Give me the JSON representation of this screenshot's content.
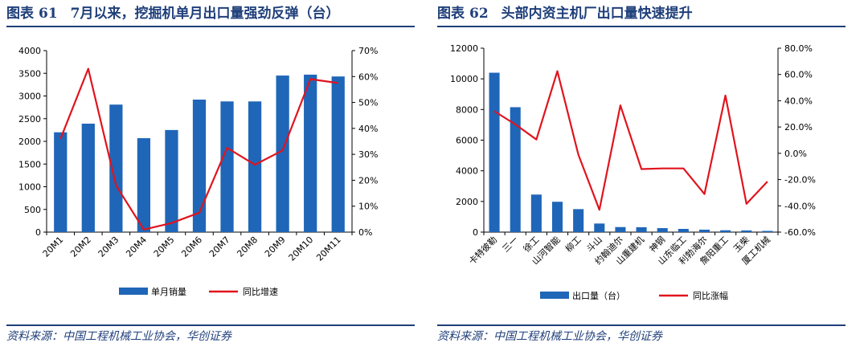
{
  "left": {
    "figure_label": "图表",
    "figure_number": "61",
    "title": "7月以来，挖掘机单月出口量强劲反弹（台）",
    "source": "资料来源：中国工程机械工业协会，华创证券"
  },
  "right": {
    "figure_label": "图表",
    "figure_number": "62",
    "title": "头部内资主机厂出口量快速提升",
    "source": "资料来源：中国工程机械工业协会，华创证券"
  },
  "colors": {
    "bar": "#1f66b8",
    "line": "#e0141e",
    "title": "#1f3f7a"
  },
  "chart_data": [
    {
      "type": "bar",
      "categories": [
        "20M1",
        "20M2",
        "20M3",
        "20M4",
        "20M5",
        "20M6",
        "20M7",
        "20M8",
        "20M9",
        "20M10",
        "20M11"
      ],
      "series": [
        {
          "name": "单月销量",
          "type": "bar",
          "axis": "left",
          "values": [
            2200,
            2390,
            2810,
            2070,
            2250,
            2920,
            2880,
            2880,
            3450,
            3470,
            3430
          ]
        },
        {
          "name": "同比增速",
          "type": "line",
          "axis": "right",
          "values": [
            36,
            63,
            18,
            1,
            3.5,
            7.5,
            32.5,
            26,
            31.5,
            59,
            57.5
          ]
        }
      ],
      "ylim": [
        0,
        4000
      ],
      "yticks": [
        0,
        500,
        1000,
        1500,
        2000,
        2500,
        3000,
        3500,
        4000
      ],
      "y2lim": [
        0,
        70
      ],
      "y2ticks": [
        "0%",
        "10%",
        "20%",
        "30%",
        "40%",
        "50%",
        "60%",
        "70%"
      ],
      "legend": [
        "单月销量",
        "同比增速"
      ],
      "legend_position": "bottom"
    },
    {
      "type": "bar",
      "categories": [
        "卡特彼勒",
        "三一",
        "徐工",
        "山河智能",
        "柳工",
        "斗山",
        "约翰迪尔",
        "山重建机",
        "神钢",
        "山东临工",
        "利勃海尔",
        "詹阳重工",
        "玉柴",
        "厦工机械"
      ],
      "series": [
        {
          "name": "出口量（台）",
          "type": "bar",
          "axis": "left",
          "values": [
            10400,
            8150,
            2450,
            1980,
            1500,
            560,
            330,
            320,
            260,
            210,
            160,
            120,
            110,
            80
          ]
        },
        {
          "name": "同比涨幅",
          "type": "line",
          "axis": "right",
          "values": [
            32,
            22,
            10.5,
            62.5,
            -1,
            -43,
            36.5,
            -12,
            -11.5,
            -11.5,
            -31,
            44,
            -38.5,
            -21.5
          ]
        }
      ],
      "ylim": [
        0,
        12000
      ],
      "yticks": [
        0,
        2000,
        4000,
        6000,
        8000,
        10000,
        12000
      ],
      "y2lim": [
        -60,
        80
      ],
      "y2ticks": [
        "-60.0%",
        "-40.0%",
        "-20.0%",
        "0.0%",
        "20.0%",
        "40.0%",
        "60.0%",
        "80.0%"
      ],
      "legend": [
        "出口量（台）",
        "同比涨幅"
      ],
      "legend_position": "bottom"
    }
  ]
}
